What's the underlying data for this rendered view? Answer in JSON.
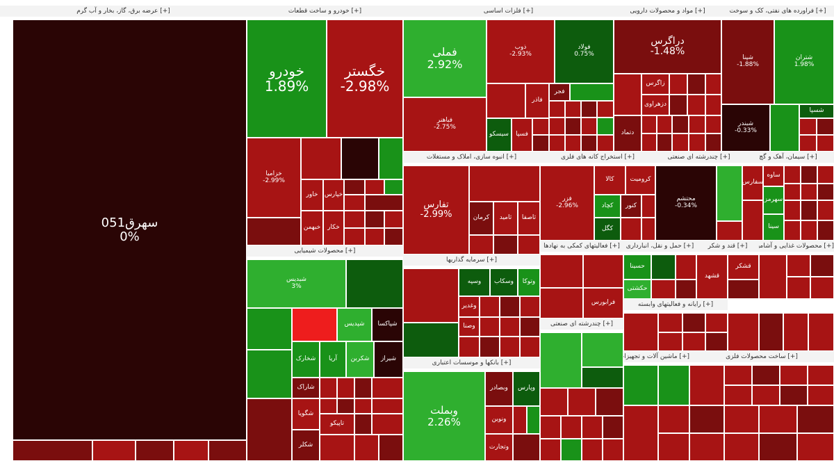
{
  "colors": {
    "dark_maroon": "#2a0505",
    "dark_red": "#7a0e0e",
    "red": "#a71414",
    "bright_red": "#ee1d1d",
    "dark_green": "#0d5c0d",
    "green": "#199219",
    "light_green": "#2faf2f",
    "bright_green": "#3cc23c"
  },
  "sectors": [
    {
      "key": "electricity",
      "title": "[+] عرضه برق، گاز، بخار و آب گرم"
    },
    {
      "key": "auto",
      "title": "[+] خودرو و ساخت قطعات"
    },
    {
      "key": "metals",
      "title": "[+] فلزات اساسی"
    },
    {
      "key": "pharma",
      "title": "[+] مواد و محصولات دارویی"
    },
    {
      "key": "oil",
      "title": "[+] فراورده های نفتی، کک و سوخت"
    },
    {
      "key": "chemical",
      "title": "[+] محصولات شیمیایی"
    },
    {
      "key": "tiles",
      "title": "[+] انبوه سازی، املاک و مستغلات"
    },
    {
      "key": "mining",
      "title": "[+] استخراج کانه های فلزی"
    },
    {
      "key": "multi",
      "title": "[+] چندرشته ای صنعتی"
    },
    {
      "key": "cement",
      "title": "[+] سیمان، آهک و گچ"
    },
    {
      "key": "investment",
      "title": "[+] سرمایه گذاریها"
    },
    {
      "key": "banks",
      "title": "[+] بانکها و موسسات اعتباری"
    },
    {
      "key": "support",
      "title": "[+] فعالیتهای کمکی به نهادها"
    },
    {
      "key": "transport",
      "title": "[+] حمل و نقل، انبارداری"
    },
    {
      "key": "sugar",
      "title": "[+] قند و شکر"
    },
    {
      "key": "info",
      "title": "[+] رایانه و فعالیتهای وابسته"
    },
    {
      "key": "food",
      "title": "[+] محصولات غذایی و آشامیدنی"
    },
    {
      "key": "machinery",
      "title": "[+] ماشین آلات و تجهیزات"
    },
    {
      "key": "metal_products",
      "title": "[+] ساخت محصولات فلزی"
    }
  ],
  "tiles": {
    "big_plant": {
      "symbol": "سهرق051",
      "change": "0%"
    },
    "khodro": {
      "symbol": "خودرو",
      "change": "1.89%"
    },
    "khgostar": {
      "symbol": "خگستر",
      "change": "-2.98%"
    },
    "khzamia": {
      "symbol": "خزامیا",
      "change": "-2.99%"
    },
    "fameli": {
      "symbol": "فملی",
      "change": "2.92%"
    },
    "zob": {
      "symbol": "ذوب",
      "change": "-2.93%"
    },
    "foolad": {
      "symbol": "فولاد",
      "change": "0.75%"
    },
    "fabahnar": {
      "symbol": "فباهنر",
      "change": "-2.75%"
    },
    "daragpakhsh": {
      "symbol": "دراگرس",
      "change": "-1.48%"
    },
    "shapna": {
      "symbol": "شپنا",
      "change": "-1.88%"
    },
    "shetran": {
      "symbol": "شتران",
      "change": "1.98%"
    },
    "shabandar": {
      "symbol": "شبندر",
      "change": "-0.33%"
    },
    "shavandis": {
      "symbol": "شبدیس",
      "change": "3%"
    },
    "tfars": {
      "symbol": "تفارس",
      "change": "-2.99%"
    },
    "fazar": {
      "symbol": "فزر",
      "change": "-2.96%"
    },
    "mohtasham": {
      "symbol": "محتشم",
      "change": "-0.34%"
    },
    "vabmellat": {
      "symbol": "وبملت",
      "change": "2.26%"
    },
    "vsapa": {
      "symbol": "وساپا",
      "change": "-2.99%"
    },
    "misc_1": {
      "symbol": "خاور",
      "change": ""
    },
    "misc_2": {
      "symbol": "خپارس",
      "change": ""
    },
    "misc_3": {
      "symbol": "خبهمن",
      "change": ""
    },
    "misc_4": {
      "symbol": "خکار",
      "change": ""
    },
    "misc_5": {
      "symbol": "خموتور",
      "change": ""
    },
    "misc_6": {
      "symbol": "خنصیر",
      "change": ""
    },
    "misc_7": {
      "symbol": "فجر",
      "change": ""
    },
    "misc_8": {
      "symbol": "فاذر",
      "change": ""
    },
    "misc_9": {
      "symbol": "فسپا",
      "change": ""
    },
    "misc_10": {
      "symbol": "سیسکو",
      "change": ""
    },
    "misc_11": {
      "symbol": "دتماد",
      "change": ""
    },
    "misc_12": {
      "symbol": "دجابر",
      "change": ""
    },
    "misc_13": {
      "symbol": "دبالک",
      "change": ""
    },
    "misc_14": {
      "symbol": "شپاکسا",
      "change": ""
    },
    "misc_15": {
      "symbol": "شسپا",
      "change": ""
    },
    "misc_16": {
      "symbol": "شخارک",
      "change": ""
    },
    "misc_17": {
      "symbol": "شفن",
      "change": ""
    },
    "misc_18": {
      "symbol": "شکربن",
      "change": ""
    },
    "misc_19": {
      "symbol": "شپدیس",
      "change": ""
    },
    "misc_20": {
      "symbol": "شگویا",
      "change": ""
    },
    "misc_21": {
      "symbol": "شاراک",
      "change": ""
    },
    "misc_22": {
      "symbol": "شکلر",
      "change": ""
    },
    "misc_23": {
      "symbol": "شیراز",
      "change": ""
    },
    "misc_24": {
      "symbol": "آریا",
      "change": ""
    },
    "misc_25": {
      "symbol": "جم",
      "change": ""
    },
    "misc_26": {
      "symbol": "تاپیکو",
      "change": ""
    },
    "misc_27": {
      "symbol": "وآذر",
      "change": ""
    },
    "misc_28": {
      "symbol": "کرمان",
      "change": ""
    },
    "misc_29": {
      "symbol": "ثامید",
      "change": ""
    },
    "misc_30": {
      "symbol": "ثاصفا",
      "change": ""
    },
    "misc_31": {
      "symbol": "کاوه",
      "change": ""
    },
    "misc_32": {
      "symbol": "کگل",
      "change": ""
    },
    "misc_33": {
      "symbol": "کچاد",
      "change": ""
    },
    "misc_34": {
      "symbol": "کروی",
      "change": ""
    },
    "misc_35": {
      "symbol": "کنور",
      "change": ""
    },
    "misc_36": {
      "symbol": "ومعادن",
      "change": ""
    },
    "misc_37": {
      "symbol": "کرومیت",
      "change": ""
    },
    "misc_38": {
      "symbol": "سیمرغ",
      "change": ""
    },
    "misc_39": {
      "symbol": "سفارس",
      "change": ""
    },
    "misc_40": {
      "symbol": "سهرمز",
      "change": ""
    },
    "misc_41": {
      "symbol": "ساوه",
      "change": ""
    },
    "misc_42": {
      "symbol": "سینا",
      "change": ""
    },
    "misc_43": {
      "symbol": "وبصادر",
      "change": ""
    },
    "misc_44": {
      "symbol": "وتجارت",
      "change": ""
    },
    "misc_45": {
      "symbol": "ونوین",
      "change": ""
    },
    "misc_46": {
      "symbol": "وپارس",
      "change": ""
    },
    "misc_47": {
      "symbol": "وسپه",
      "change": ""
    },
    "misc_48": {
      "symbol": "وغدیر",
      "change": ""
    },
    "misc_49": {
      "symbol": "وسکاب",
      "change": ""
    },
    "misc_50": {
      "symbol": "وبوعلی",
      "change": ""
    },
    "misc_51": {
      "symbol": "وامید",
      "change": ""
    },
    "misc_52": {
      "symbol": "وصنا",
      "change": ""
    },
    "misc_53": {
      "symbol": "وتوکا",
      "change": ""
    },
    "misc_54": {
      "symbol": "وصندوق",
      "change": ""
    },
    "misc_55": {
      "symbol": "فرابورس",
      "change": ""
    },
    "misc_56": {
      "symbol": "حسینا",
      "change": ""
    },
    "misc_57": {
      "symbol": "حتاید",
      "change": ""
    },
    "misc_58": {
      "symbol": "حکشتی",
      "change": ""
    },
    "misc_59": {
      "symbol": "قشکر",
      "change": ""
    },
    "misc_60": {
      "symbol": "قاسم",
      "change": ""
    },
    "misc_61": {
      "symbol": "قشهد",
      "change": ""
    },
    "misc_62": {
      "symbol": "سپ",
      "change": ""
    },
    "misc_63": {
      "symbol": "فن آوا",
      "change": ""
    },
    "misc_64": {
      "symbol": "غبهنوش",
      "change": ""
    },
    "misc_65": {
      "symbol": "غمارگ",
      "change": ""
    },
    "misc_66": {
      "symbol": "غشهد",
      "change": ""
    },
    "misc_67": {
      "symbol": "غدام",
      "change": ""
    },
    "misc_68": {
      "symbol": "تاپکیش",
      "change": ""
    },
    "misc_69": {
      "symbol": "فلزفن",
      "change": ""
    },
    "misc_70": {
      "symbol": "کالا",
      "change": ""
    },
    "misc_71": {
      "symbol": "تپسی",
      "change": ""
    },
    "misc_72": {
      "symbol": "دزهراوی",
      "change": ""
    },
    "misc_73": {
      "symbol": "زاگرس",
      "change": ""
    }
  }
}
